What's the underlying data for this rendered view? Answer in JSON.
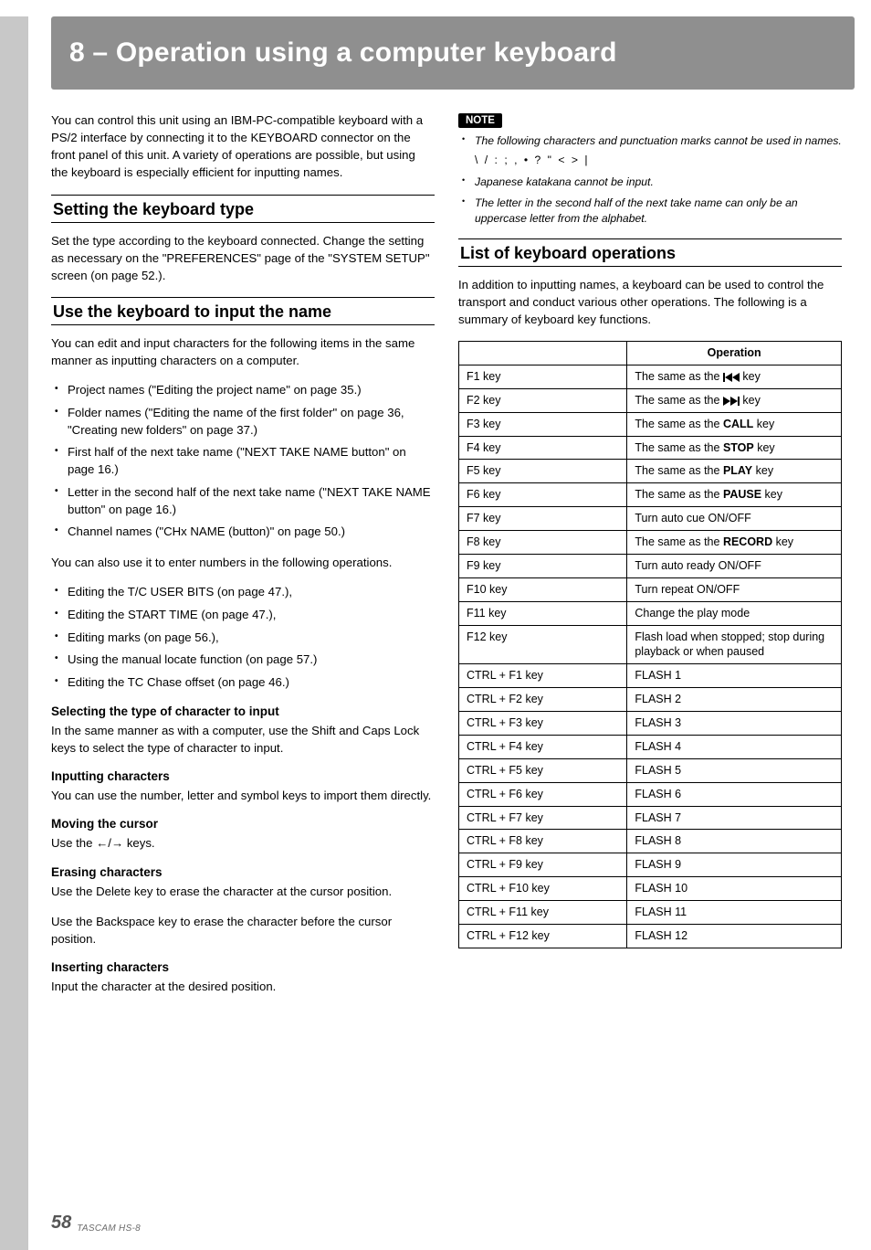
{
  "chapter": {
    "title": "8 – Operation using a computer keyboard"
  },
  "intro": "You can control this unit using an IBM-PC-compatible keyboard with a PS/2 interface by connecting it to the KEYBOARD connector on the front panel of this unit. A variety of operations are possible, but using the keyboard is especially efficient for inputting names.",
  "sections": {
    "setType": {
      "title": "Setting the keyboard type",
      "body": "Set the type according to the keyboard connected. Change the setting as necessary on the \"PREFERENCES\" page of the \"SYSTEM SETUP\" screen (on page 52.)."
    },
    "useKb": {
      "title": "Use the keyboard to input the name",
      "lead": "You can edit and input characters for the following items in the same manner as inputting characters on a computer.",
      "bullets": [
        "Project names (\"Editing the project name\" on page 35.)",
        "Folder names (\"Editing the name of the first folder\" on page 36, \"Creating new folders\" on page 37.)",
        "First half of the next take name (\"NEXT TAKE NAME button\" on page 16.)",
        "Letter in the second half of the next take name (\"NEXT TAKE NAME button\" on page 16.)",
        "Channel names (\"CHx NAME (button)\" on page 50.)"
      ],
      "lead2": "You can also use it to enter numbers in the following operations.",
      "bullets2": [
        "Editing the T/C USER BITS (on page 47.),",
        "Editing the START TIME (on page 47.),",
        "Editing marks (on page 56.),",
        "Using the manual locate function (on page 57.)",
        "Editing the TC Chase offset (on page 46.)"
      ],
      "selType": {
        "head": "Selecting the type of character to input",
        "body": "In the same manner as with a computer, use the Shift and Caps Lock keys to select the type of character to input."
      },
      "inputting": {
        "head": "Inputting characters",
        "body": "You can use the number, letter and symbol keys to import them directly."
      },
      "moving": {
        "head": "Moving the cursor",
        "body": "Use the ←/→ keys."
      },
      "erasing": {
        "head": "Erasing characters",
        "body1": "Use the Delete key to erase the character at the cursor position.",
        "body2": "Use the Backspace key to erase the character before the cursor position."
      },
      "inserting": {
        "head": "Inserting characters",
        "body": "Input the character at the desired position."
      }
    },
    "note": {
      "label": "NOTE",
      "items": {
        "a_lead": "The following characters and punctuation marks cannot be used in names.",
        "a_chars": "\\ / : ; , • ? \" < > |",
        "b": "Japanese katakana cannot be input.",
        "c": "The letter in the second half of the next take name can only be an uppercase letter from the alphabet."
      }
    },
    "listOps": {
      "title": "List of keyboard operations",
      "lead": "In addition to inputting names, a keyboard can be used to control the transport and conduct various other operations. The following is a summary of keyboard key functions."
    }
  },
  "table": {
    "column2Header": "Operation",
    "rows": [
      {
        "key": "F1 key",
        "op_prefix": "The same as the ",
        "icon": "rewind",
        "op_suffix": " key"
      },
      {
        "key": "F2 key",
        "op_prefix": "The same as the ",
        "icon": "forward",
        "op_suffix": " key"
      },
      {
        "key": "F3 key",
        "op_prefix": "The same as the ",
        "bold": "CALL",
        "op_suffix": " key"
      },
      {
        "key": "F4 key",
        "op_prefix": "The same as the ",
        "bold": "STOP",
        "op_suffix": " key"
      },
      {
        "key": "F5 key",
        "op_prefix": "The same as the ",
        "bold": "PLAY",
        "op_suffix": " key"
      },
      {
        "key": "F6 key",
        "op_prefix": "The same as the ",
        "bold": "PAUSE",
        "op_suffix": " key"
      },
      {
        "key": "F7 key",
        "op": "Turn auto cue ON/OFF"
      },
      {
        "key": "F8 key",
        "op_prefix": "The same as the ",
        "bold": "RECORD",
        "op_suffix": " key"
      },
      {
        "key": "F9 key",
        "op": "Turn auto ready ON/OFF"
      },
      {
        "key": "F10 key",
        "op": "Turn repeat ON/OFF"
      },
      {
        "key": "F11 key",
        "op": "Change the play mode"
      },
      {
        "key": "F12 key",
        "op": "Flash load when stopped; stop during playback or when paused"
      },
      {
        "key": "CTRL + F1 key",
        "op": "FLASH 1"
      },
      {
        "key": "CTRL + F2 key",
        "op": "FLASH 2"
      },
      {
        "key": "CTRL + F3 key",
        "op": "FLASH 3"
      },
      {
        "key": "CTRL + F4 key",
        "op": "FLASH 4"
      },
      {
        "key": "CTRL + F5 key",
        "op": "FLASH 5"
      },
      {
        "key": "CTRL + F6 key",
        "op": "FLASH 6"
      },
      {
        "key": "CTRL + F7 key",
        "op": "FLASH 7"
      },
      {
        "key": "CTRL + F8 key",
        "op": "FLASH 8"
      },
      {
        "key": "CTRL + F9 key",
        "op": "FLASH 9"
      },
      {
        "key": "CTRL + F10 key",
        "op": "FLASH 10"
      },
      {
        "key": "CTRL + F11 key",
        "op": "FLASH 11"
      },
      {
        "key": "CTRL + F12 key",
        "op": "FLASH 12"
      }
    ]
  },
  "footer": {
    "page": "58",
    "brand": "TASCAM  HS-8"
  },
  "colors": {
    "header_bg": "#8f8f8f",
    "gutter": "#c8c8c8",
    "text": "#000000",
    "footer_gray": "#6b6b6b"
  },
  "icons": {
    "rewind": "skip-back-icon",
    "forward": "skip-fwd-icon"
  }
}
